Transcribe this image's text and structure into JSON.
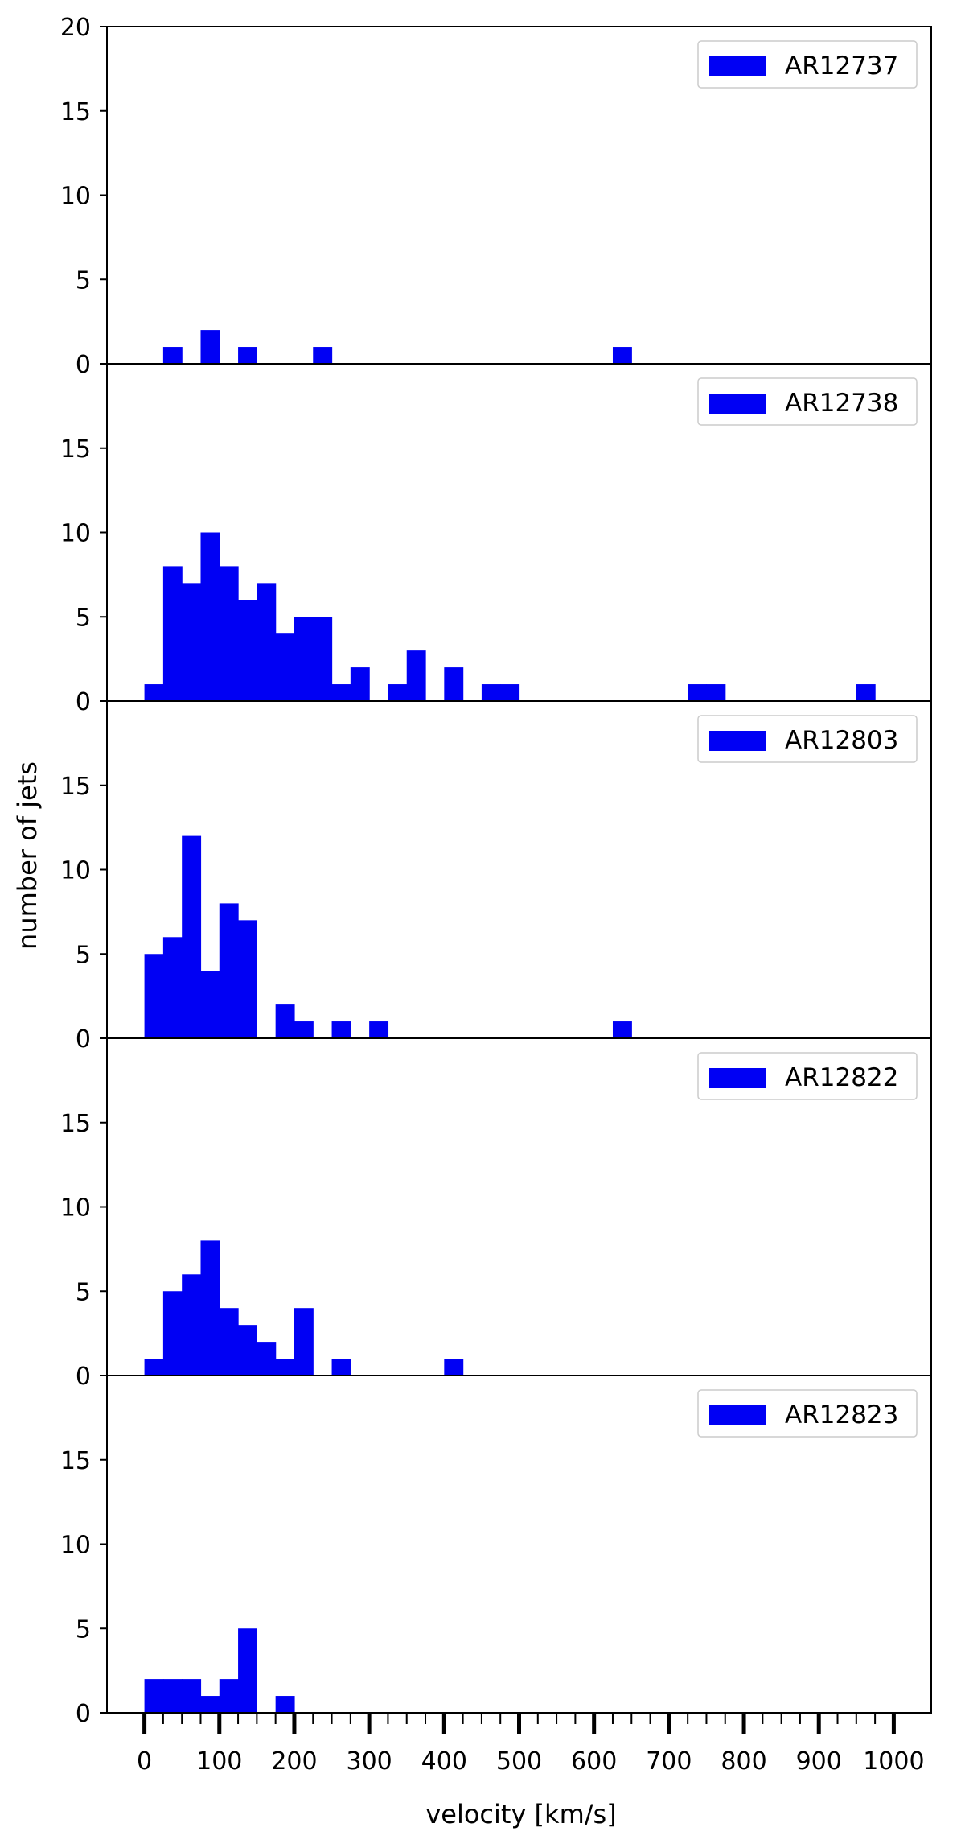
{
  "chart_data": {
    "type": "bar",
    "xlabel": "velocity [km/s]",
    "ylabel": "number of jets",
    "xlim": [
      -50,
      1050
    ],
    "x_major_ticks": [
      0,
      100,
      200,
      300,
      400,
      500,
      600,
      700,
      800,
      900,
      1000
    ],
    "x_minor_tick_step": 25,
    "bin_width": 25,
    "ylim": [
      0,
      20
    ],
    "y_ticks_first_panel": [
      0,
      5,
      10,
      15,
      20
    ],
    "y_ticks_other_panels": [
      0,
      5,
      10,
      15
    ],
    "bar_color": "#0000f4",
    "legend_position": "top-right",
    "panels": [
      {
        "name": "AR12737",
        "bins": [
          {
            "x": 25,
            "count": 1
          },
          {
            "x": 75,
            "count": 2
          },
          {
            "x": 125,
            "count": 1
          },
          {
            "x": 225,
            "count": 1
          },
          {
            "x": 625,
            "count": 1
          }
        ]
      },
      {
        "name": "AR12738",
        "bins": [
          {
            "x": 0,
            "count": 1
          },
          {
            "x": 25,
            "count": 8
          },
          {
            "x": 50,
            "count": 7
          },
          {
            "x": 75,
            "count": 10
          },
          {
            "x": 100,
            "count": 8
          },
          {
            "x": 125,
            "count": 6
          },
          {
            "x": 150,
            "count": 7
          },
          {
            "x": 175,
            "count": 4
          },
          {
            "x": 200,
            "count": 5
          },
          {
            "x": 225,
            "count": 5
          },
          {
            "x": 250,
            "count": 1
          },
          {
            "x": 275,
            "count": 2
          },
          {
            "x": 325,
            "count": 1
          },
          {
            "x": 350,
            "count": 3
          },
          {
            "x": 400,
            "count": 2
          },
          {
            "x": 450,
            "count": 1
          },
          {
            "x": 475,
            "count": 1
          },
          {
            "x": 725,
            "count": 1
          },
          {
            "x": 750,
            "count": 1
          },
          {
            "x": 950,
            "count": 1
          }
        ]
      },
      {
        "name": "AR12803",
        "bins": [
          {
            "x": 0,
            "count": 5
          },
          {
            "x": 25,
            "count": 6
          },
          {
            "x": 50,
            "count": 12
          },
          {
            "x": 75,
            "count": 4
          },
          {
            "x": 100,
            "count": 8
          },
          {
            "x": 125,
            "count": 7
          },
          {
            "x": 175,
            "count": 2
          },
          {
            "x": 200,
            "count": 1
          },
          {
            "x": 250,
            "count": 1
          },
          {
            "x": 300,
            "count": 1
          },
          {
            "x": 625,
            "count": 1
          }
        ]
      },
      {
        "name": "AR12822",
        "bins": [
          {
            "x": 0,
            "count": 1
          },
          {
            "x": 25,
            "count": 5
          },
          {
            "x": 50,
            "count": 6
          },
          {
            "x": 75,
            "count": 8
          },
          {
            "x": 100,
            "count": 4
          },
          {
            "x": 125,
            "count": 3
          },
          {
            "x": 150,
            "count": 2
          },
          {
            "x": 175,
            "count": 1
          },
          {
            "x": 200,
            "count": 4
          },
          {
            "x": 250,
            "count": 1
          },
          {
            "x": 400,
            "count": 1
          }
        ]
      },
      {
        "name": "AR12823",
        "bins": [
          {
            "x": 0,
            "count": 2
          },
          {
            "x": 25,
            "count": 2
          },
          {
            "x": 50,
            "count": 2
          },
          {
            "x": 75,
            "count": 1
          },
          {
            "x": 100,
            "count": 2
          },
          {
            "x": 125,
            "count": 5
          },
          {
            "x": 175,
            "count": 1
          }
        ]
      }
    ]
  }
}
